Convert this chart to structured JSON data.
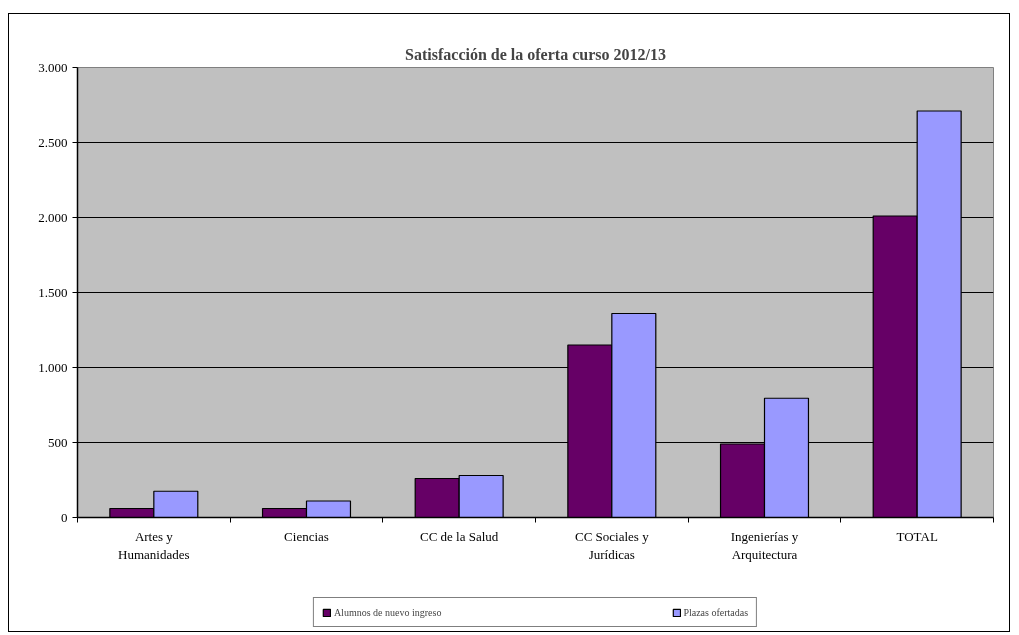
{
  "chart_data": {
    "type": "bar",
    "title": "Satisfacción de la oferta curso 2012/13",
    "categories": [
      "Artes y Humanidades",
      "Ciencias",
      "CC de la Salud",
      "CC Sociales y Jurídicas",
      "Ingenierías y Arquitectura",
      "TOTAL"
    ],
    "series": [
      {
        "name": "Alumnos de nuevo ingreso",
        "color": "#660066",
        "values": [
          60,
          60,
          260,
          1150,
          490,
          2010
        ]
      },
      {
        "name": "Plazas ofertadas",
        "color": "#9999ff",
        "values": [
          175,
          110,
          280,
          1360,
          795,
          2710
        ]
      }
    ],
    "ylim": [
      0,
      3000
    ],
    "yticks": [
      0,
      500,
      {
        "value": 1000,
        "label": "1.000"
      },
      {
        "value": 1500,
        "label": "1.500"
      },
      {
        "value": 2000,
        "label": "2.000"
      },
      {
        "value": 2500,
        "label": "2.500"
      },
      {
        "value": 3000,
        "label": "3.000"
      }
    ],
    "grid": "y",
    "legend": "bottom"
  }
}
